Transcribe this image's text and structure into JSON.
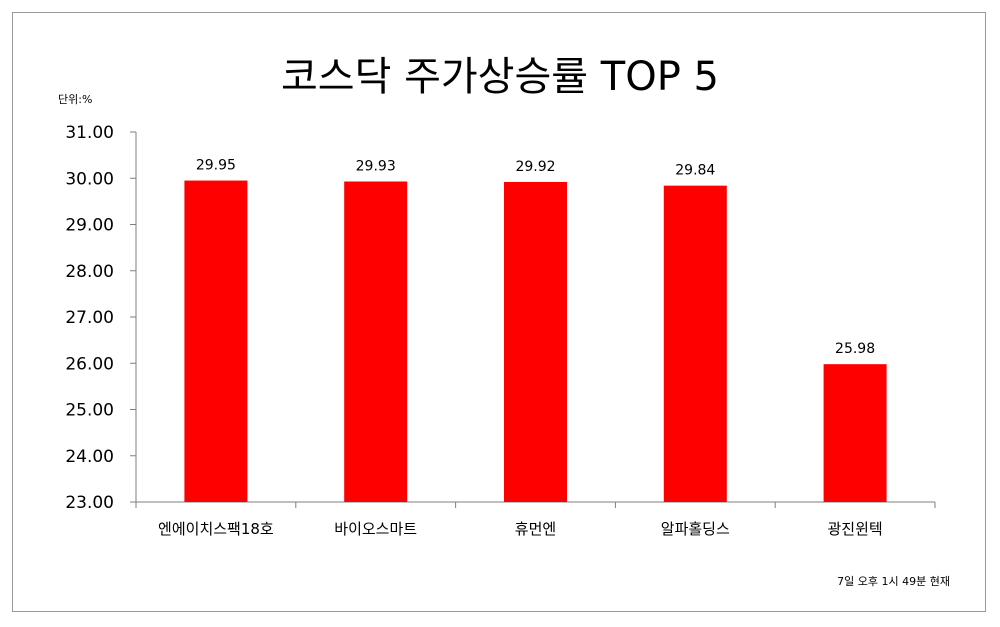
{
  "chart_data": {
    "type": "bar",
    "title": "코스닥 주가상승률 TOP 5",
    "unit_label": "단위:%",
    "note": "7일 오후 1시 49분 현재",
    "categories": [
      "엔에이치스팩18호",
      "바이오스마트",
      "휴먼엔",
      "알파홀딩스",
      "광진윈텍"
    ],
    "values": [
      29.95,
      29.93,
      29.92,
      29.84,
      25.98
    ],
    "value_labels": [
      "29.95",
      "29.93",
      "29.92",
      "29.84",
      "25.98"
    ],
    "ylim": [
      23,
      31
    ],
    "yticks": [
      "23.00",
      "24.00",
      "25.00",
      "26.00",
      "27.00",
      "28.00",
      "29.00",
      "30.00",
      "31.00"
    ],
    "bar_color": "#ff0000",
    "grid": false
  }
}
